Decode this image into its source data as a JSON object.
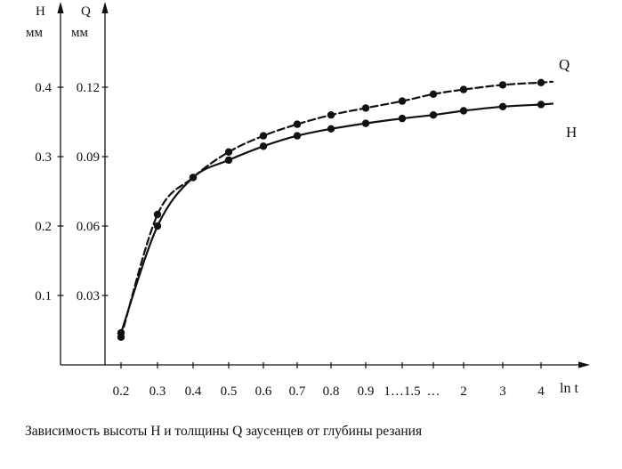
{
  "labels": {
    "h_axis_letter": "H",
    "h_axis_unit": "мм",
    "q_axis_letter": "Q",
    "q_axis_unit": "мм",
    "x_axis": "ln t",
    "series_q": "Q",
    "series_h": "H"
  },
  "chart_data": {
    "type": "line",
    "caption": "Зависимость высоты H и толщины Q заусенцев от глубины резания",
    "x_axis": {
      "label": "ln t",
      "tick_labels": [
        "0.2",
        "0.3",
        "0.4",
        "0.5",
        "0.6",
        "0.7",
        "0.8",
        "0.9",
        "1…1.5",
        "…",
        "2",
        "3",
        "4"
      ]
    },
    "y_axes": [
      {
        "name": "H",
        "unit": "мм",
        "side": "outer-left",
        "tick_labels": [
          "0.4",
          "0.3",
          "0.2",
          "0.1"
        ]
      },
      {
        "name": "Q",
        "unit": "мм",
        "side": "inner-left",
        "tick_labels": [
          "0.12",
          "0.09",
          "0.06",
          "0.03"
        ]
      }
    ],
    "series": [
      {
        "name": "H",
        "axis": "H",
        "unit": "мм",
        "line_style": "solid",
        "marker": "filled-circle",
        "values": [
          0.046,
          0.2,
          0.27,
          0.295,
          0.315,
          0.33,
          0.34,
          0.348,
          0.355,
          0.36,
          0.366,
          0.372,
          0.375
        ]
      },
      {
        "name": "Q",
        "axis": "Q",
        "unit": "мм",
        "line_style": "dashed",
        "marker": "filled-circle",
        "values": [
          0.012,
          0.065,
          0.081,
          0.092,
          0.099,
          0.104,
          0.108,
          0.111,
          0.114,
          0.117,
          0.119,
          0.121,
          0.122
        ]
      }
    ],
    "legend_position": "curve-end-labels",
    "grid": false
  }
}
